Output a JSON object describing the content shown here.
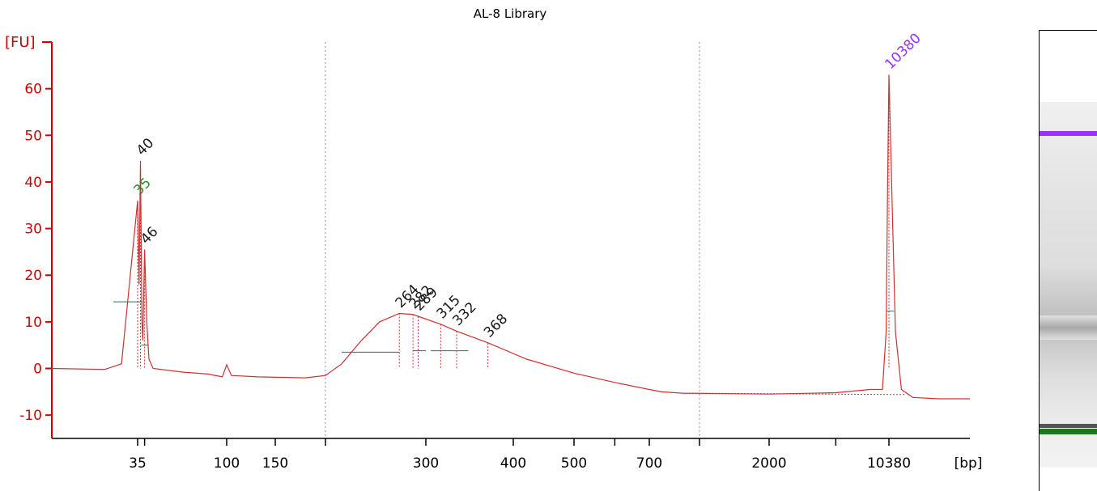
{
  "chart_data": {
    "type": "line",
    "title": "AL-8 Library",
    "ylabel": "[FU]",
    "xlabel": "[bp]",
    "ylim": [
      -15,
      70
    ],
    "y_ticks": [
      -10,
      0,
      10,
      20,
      30,
      40,
      50,
      60
    ],
    "x_tick_labels": [
      "35",
      "100",
      "150",
      "300",
      "400",
      "500",
      "700",
      "2000",
      "10380"
    ],
    "series": [
      {
        "color": "#d03030",
        "points": [
          [
            30,
            0
          ],
          [
            33,
            -0.2
          ],
          [
            34,
            1
          ],
          [
            35,
            36
          ],
          [
            35.6,
            18
          ],
          [
            36.2,
            44.5
          ],
          [
            36.8,
            10
          ],
          [
            37.2,
            6
          ],
          [
            38,
            25.5
          ],
          [
            39,
            10
          ],
          [
            40,
            2
          ],
          [
            42,
            0
          ],
          [
            60,
            -0.8
          ],
          [
            80,
            -1.2
          ],
          [
            95,
            -1.8
          ],
          [
            100,
            0.8
          ],
          [
            104,
            -1.5
          ],
          [
            130,
            -1.8
          ],
          [
            170,
            -2
          ],
          [
            185,
            -1.5
          ],
          [
            200,
            1
          ],
          [
            220,
            6
          ],
          [
            240,
            10
          ],
          [
            264,
            11.8
          ],
          [
            282,
            11.6
          ],
          [
            289,
            11.2
          ],
          [
            315,
            9.5
          ],
          [
            332,
            8
          ],
          [
            368,
            5.5
          ],
          [
            420,
            2
          ],
          [
            500,
            -1
          ],
          [
            600,
            -3
          ],
          [
            700,
            -4.5
          ],
          [
            800,
            -5
          ],
          [
            1000,
            -5.3
          ],
          [
            2000,
            -5.5
          ],
          [
            5000,
            -5.2
          ],
          [
            8000,
            -4.5
          ],
          [
            9500,
            -4.5
          ],
          [
            10000,
            8
          ],
          [
            10200,
            40
          ],
          [
            10380,
            63
          ],
          [
            10550,
            40
          ],
          [
            10800,
            8
          ],
          [
            11200,
            -4.5
          ],
          [
            12000,
            -6.2
          ],
          [
            14000,
            -6.5
          ],
          [
            17000,
            -6.5
          ]
        ]
      }
    ],
    "peak_labels": [
      {
        "value": 35,
        "label": "35",
        "fu": 36,
        "color": "#2e8b2e"
      },
      {
        "value": 36.2,
        "label": "40",
        "fu": 44.5,
        "color": "#1a1a1a"
      },
      {
        "value": 38,
        "label": "46",
        "fu": 25.5,
        "color": "#1a1a1a"
      },
      {
        "value": 264,
        "label": "264",
        "fu": 11.8,
        "color": "#1a1a1a"
      },
      {
        "value": 282,
        "label": "282",
        "fu": 11.6,
        "color": "#1a1a1a"
      },
      {
        "value": 289,
        "label": "289",
        "fu": 11.2,
        "color": "#1a1a1a"
      },
      {
        "value": 315,
        "label": "315",
        "fu": 9.5,
        "color": "#1a1a1a"
      },
      {
        "value": 332,
        "label": "332",
        "fu": 8,
        "color": "#1a1a1a"
      },
      {
        "value": 368,
        "label": "368",
        "fu": 5.5,
        "color": "#1a1a1a"
      },
      {
        "value": 10380,
        "label": "10380",
        "fu": 63,
        "color": "#9b30ff"
      }
    ],
    "region_markers_bp": [
      185,
      1200
    ],
    "colors": {
      "axis": "#cc0000",
      "trace": "#d03030",
      "baseline": "#2e6e5e",
      "upper_marker": "#9b30ff",
      "lower_marker": "#1a7a1a"
    }
  }
}
